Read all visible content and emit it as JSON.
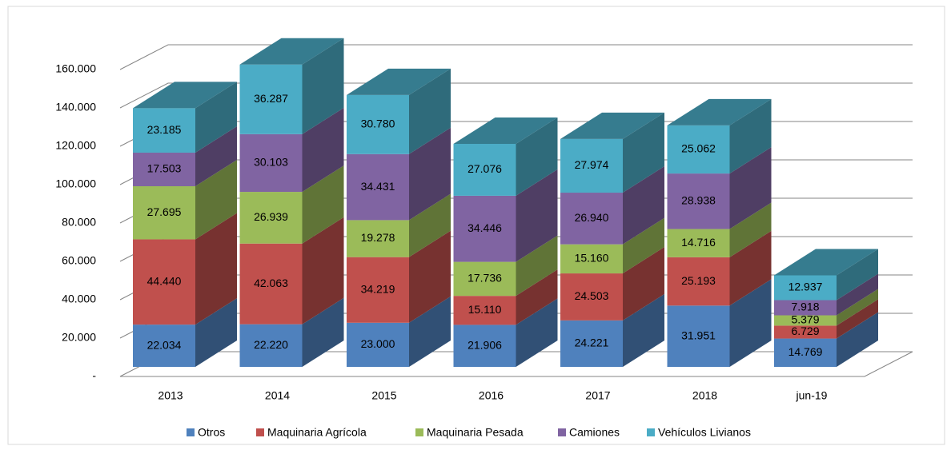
{
  "chart_data": {
    "type": "bar3d_stacked",
    "categories": [
      "2013",
      "2014",
      "2015",
      "2016",
      "2017",
      "2018",
      "jun-19"
    ],
    "series": [
      {
        "name": "Otros",
        "color": "#4f81bd",
        "values": [
          22034,
          22220,
          23000,
          21906,
          24221,
          31951,
          14769
        ],
        "value_labels": [
          "22.034",
          "22.220",
          "23.000",
          "21.906",
          "24.221",
          "31.951",
          "14.769"
        ]
      },
      {
        "name": "Maquinaria Agrícola",
        "color": "#c0504d",
        "values": [
          44440,
          42063,
          34219,
          15110,
          24503,
          25193,
          6729
        ],
        "value_labels": [
          "44.440",
          "42.063",
          "34.219",
          "15.110",
          "24.503",
          "25.193",
          "6.729"
        ]
      },
      {
        "name": "Maquinaria Pesada",
        "color": "#9bbb59",
        "values": [
          27695,
          26939,
          19278,
          17736,
          15160,
          14716,
          5379
        ],
        "value_labels": [
          "27.695",
          "26.939",
          "19.278",
          "17.736",
          "15.160",
          "14.716",
          "5.379"
        ]
      },
      {
        "name": "Camiones",
        "color": "#8064a2",
        "values": [
          17503,
          30103,
          34431,
          34446,
          26940,
          28938,
          7918
        ],
        "value_labels": [
          "17.503",
          "30.103",
          "34.431",
          "34.446",
          "26.940",
          "28.938",
          "7.918"
        ]
      },
      {
        "name": "Vehículos Livianos",
        "color": "#4bacc6",
        "values": [
          23185,
          36287,
          30780,
          27076,
          27974,
          25062,
          12937
        ],
        "value_labels": [
          "23.185",
          "36.287",
          "30.780",
          "27.076",
          "27.974",
          "25.062",
          "12.937"
        ]
      }
    ],
    "ylim": [
      0,
      160000
    ],
    "yticks": [
      {
        "value": 0,
        "label": "-"
      },
      {
        "value": 20000,
        "label": "20.000"
      },
      {
        "value": 40000,
        "label": "40.000"
      },
      {
        "value": 60000,
        "label": "60.000"
      },
      {
        "value": 80000,
        "label": "80.000"
      },
      {
        "value": 100000,
        "label": "100.000"
      },
      {
        "value": 120000,
        "label": "120.000"
      },
      {
        "value": 140000,
        "label": "140.000"
      },
      {
        "value": 160000,
        "label": "160.000"
      }
    ],
    "grid": true,
    "legend": "bottom"
  }
}
